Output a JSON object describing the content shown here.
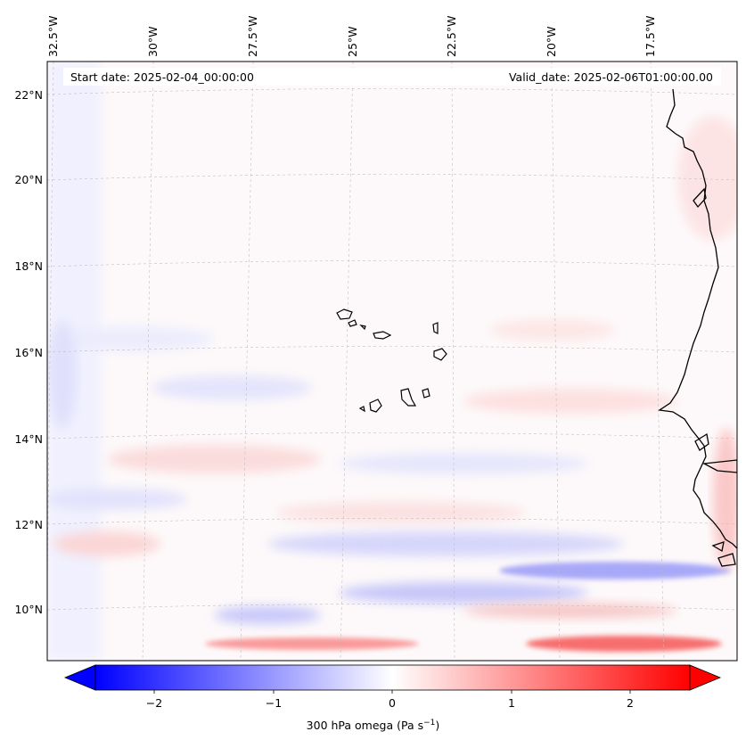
{
  "map": {
    "start_date": "Start date: 2025-02-04_00:00:00",
    "valid_date": "Valid_date: 2025-02-06T01:00:00.00",
    "lon_labels": [
      "32.5°W",
      "30°W",
      "27.5°W",
      "25°W",
      "22.5°W",
      "20°W",
      "17.5°W"
    ],
    "lat_labels": [
      "22°N",
      "20°N",
      "18°N",
      "16°N",
      "14°N",
      "12°N",
      "10°N"
    ],
    "variable": "300 hPa omega",
    "units": "Pa s",
    "units_exponent": "−1"
  },
  "colorbar": {
    "ticks": [
      "−2",
      "−1",
      "0",
      "1",
      "2"
    ],
    "min": -2.75,
    "max": 2.75,
    "colors": {
      "negative": "#0000ff",
      "zero": "#ffffff",
      "positive": "#ff0000"
    }
  },
  "features": {
    "coastline": "West African coast",
    "islands": "Cape Verde"
  }
}
